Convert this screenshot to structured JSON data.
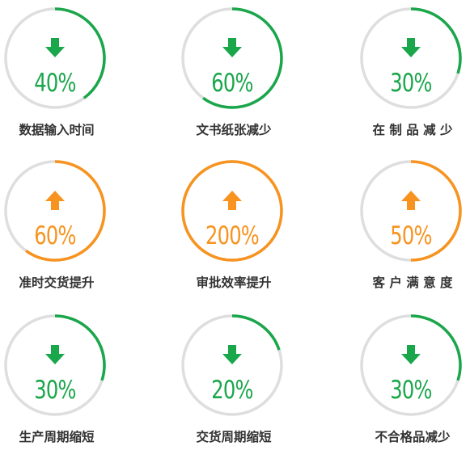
{
  "colors": {
    "decrease": "#1aa64a",
    "increase": "#f7931e",
    "track": "#dedede",
    "label": "#333333"
  },
  "metrics": [
    {
      "label": "数据输入时间",
      "value": "40%",
      "fraction": 0.4,
      "direction": "down",
      "arrow_icon": "arrow-down-icon"
    },
    {
      "label": "文书纸张减少",
      "value": "60%",
      "fraction": 0.6,
      "direction": "down",
      "arrow_icon": "arrow-down-icon"
    },
    {
      "label": "在 制 品 减 少",
      "value": "30%",
      "fraction": 0.3,
      "direction": "down",
      "arrow_icon": "arrow-down-icon"
    },
    {
      "label": "准时交货提升",
      "value": "60%",
      "fraction": 0.6,
      "direction": "up",
      "arrow_icon": "arrow-up-icon"
    },
    {
      "label": "审批效率提升",
      "value": "200%",
      "fraction": 1.0,
      "direction": "up",
      "arrow_icon": "arrow-up-icon"
    },
    {
      "label": "客 户 满 意 度",
      "value": "50%",
      "fraction": 0.5,
      "direction": "up",
      "arrow_icon": "arrow-up-icon"
    },
    {
      "label": "生产周期缩短",
      "value": "30%",
      "fraction": 0.3,
      "direction": "down",
      "arrow_icon": "arrow-down-icon"
    },
    {
      "label": "交货周期缩短",
      "value": "20%",
      "fraction": 0.2,
      "direction": "down",
      "arrow_icon": "arrow-down-icon"
    },
    {
      "label": "不合格品减少",
      "value": "30%",
      "fraction": 0.3,
      "direction": "down",
      "arrow_icon": "arrow-down-icon"
    }
  ]
}
